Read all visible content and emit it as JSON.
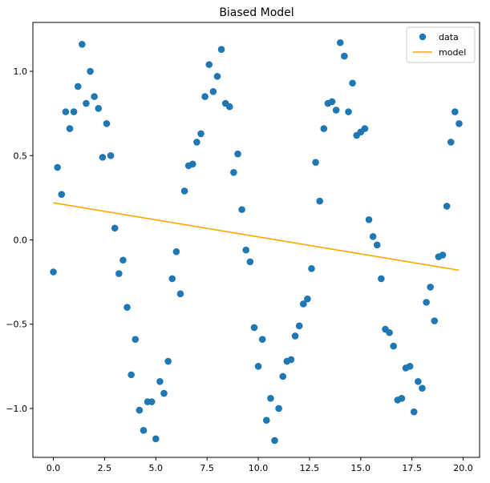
{
  "chart_data": {
    "type": "scatter",
    "title": "Biased Model",
    "xlabel": "",
    "ylabel": "",
    "xlim": [
      -1.0,
      20.8
    ],
    "ylim": [
      -1.29,
      1.29
    ],
    "x_ticks": [
      0.0,
      2.5,
      5.0,
      7.5,
      10.0,
      12.5,
      15.0,
      17.5,
      20.0
    ],
    "x_tick_labels": [
      "0.0",
      "2.5",
      "5.0",
      "7.5",
      "10.0",
      "12.5",
      "15.0",
      "17.5",
      "20.0"
    ],
    "y_ticks": [
      1.0,
      0.5,
      0.0,
      -0.5,
      -1.0
    ],
    "y_tick_labels": [
      "1.0",
      "0.5",
      "0.0",
      "−0.5",
      "−1.0"
    ],
    "grid": false,
    "legend": {
      "placement": "top-right",
      "entries": [
        "data",
        "model"
      ]
    },
    "series": [
      {
        "name": "data",
        "kind": "scatter",
        "color": "#1f77b4",
        "points": [
          [
            0.0,
            -0.19
          ],
          [
            0.2,
            0.43
          ],
          [
            0.4,
            0.27
          ],
          [
            0.6,
            0.76
          ],
          [
            0.8,
            0.66
          ],
          [
            1.0,
            0.76
          ],
          [
            1.2,
            0.91
          ],
          [
            1.4,
            1.16
          ],
          [
            1.6,
            0.81
          ],
          [
            1.8,
            1.0
          ],
          [
            2.0,
            0.85
          ],
          [
            2.2,
            0.78
          ],
          [
            2.4,
            0.49
          ],
          [
            2.6,
            0.69
          ],
          [
            2.8,
            0.5
          ],
          [
            3.0,
            0.07
          ],
          [
            3.2,
            -0.2
          ],
          [
            3.4,
            -0.12
          ],
          [
            3.6,
            -0.4
          ],
          [
            3.8,
            -0.8
          ],
          [
            4.0,
            -0.59
          ],
          [
            4.2,
            -1.01
          ],
          [
            4.4,
            -1.13
          ],
          [
            4.6,
            -0.96
          ],
          [
            4.8,
            -0.96
          ],
          [
            5.0,
            -1.18
          ],
          [
            5.2,
            -0.84
          ],
          [
            5.4,
            -0.91
          ],
          [
            5.6,
            -0.72
          ],
          [
            5.8,
            -0.23
          ],
          [
            6.0,
            -0.07
          ],
          [
            6.2,
            -0.32
          ],
          [
            6.4,
            0.29
          ],
          [
            6.6,
            0.44
          ],
          [
            6.8,
            0.45
          ],
          [
            7.0,
            0.58
          ],
          [
            7.2,
            0.63
          ],
          [
            7.4,
            0.85
          ],
          [
            7.6,
            1.04
          ],
          [
            7.8,
            0.88
          ],
          [
            8.0,
            0.97
          ],
          [
            8.2,
            1.13
          ],
          [
            8.4,
            0.81
          ],
          [
            8.6,
            0.79
          ],
          [
            8.8,
            0.4
          ],
          [
            9.0,
            0.51
          ],
          [
            9.2,
            0.18
          ],
          [
            9.4,
            -0.06
          ],
          [
            9.6,
            -0.13
          ],
          [
            9.8,
            -0.52
          ],
          [
            10.0,
            -0.75
          ],
          [
            10.2,
            -0.59
          ],
          [
            10.4,
            -1.07
          ],
          [
            10.6,
            -0.94
          ],
          [
            10.8,
            -1.19
          ],
          [
            11.0,
            -1.0
          ],
          [
            11.2,
            -0.81
          ],
          [
            11.4,
            -0.72
          ],
          [
            11.6,
            -0.71
          ],
          [
            11.8,
            -0.57
          ],
          [
            12.0,
            -0.51
          ],
          [
            12.2,
            -0.38
          ],
          [
            12.4,
            -0.35
          ],
          [
            12.6,
            -0.17
          ],
          [
            12.8,
            0.46
          ],
          [
            13.0,
            0.23
          ],
          [
            13.2,
            0.66
          ],
          [
            13.4,
            0.81
          ],
          [
            13.6,
            0.82
          ],
          [
            13.8,
            0.77
          ],
          [
            14.0,
            1.17
          ],
          [
            14.2,
            1.09
          ],
          [
            14.4,
            0.76
          ],
          [
            14.6,
            0.93
          ],
          [
            14.8,
            0.62
          ],
          [
            15.0,
            0.64
          ],
          [
            15.2,
            0.66
          ],
          [
            15.4,
            0.12
          ],
          [
            15.6,
            0.02
          ],
          [
            15.8,
            -0.03
          ],
          [
            16.0,
            -0.23
          ],
          [
            16.2,
            -0.53
          ],
          [
            16.4,
            -0.55
          ],
          [
            16.6,
            -0.63
          ],
          [
            16.8,
            -0.95
          ],
          [
            17.0,
            -0.94
          ],
          [
            17.2,
            -0.76
          ],
          [
            17.4,
            -0.75
          ],
          [
            17.6,
            -1.02
          ],
          [
            17.8,
            -0.84
          ],
          [
            18.0,
            -0.88
          ],
          [
            18.2,
            -0.37
          ],
          [
            18.4,
            -0.28
          ],
          [
            18.6,
            -0.48
          ],
          [
            18.8,
            -0.1
          ],
          [
            19.0,
            -0.09
          ],
          [
            19.2,
            0.2
          ],
          [
            19.4,
            0.58
          ],
          [
            19.6,
            0.76
          ],
          [
            19.8,
            0.69
          ]
        ]
      },
      {
        "name": "model",
        "kind": "line",
        "color": "#ffa500",
        "points": [
          [
            0.0,
            0.22
          ],
          [
            19.8,
            -0.18
          ]
        ]
      }
    ]
  }
}
